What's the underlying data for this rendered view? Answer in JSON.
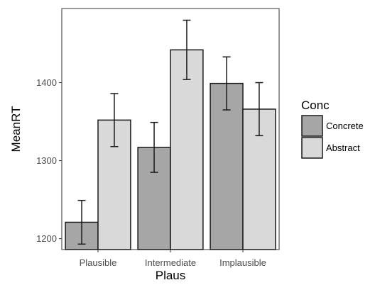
{
  "chart_data": {
    "type": "bar",
    "xlabel": "Plaus",
    "ylabel": "MeanRT",
    "categories": [
      "Plausible",
      "Intermediate",
      "Implausible"
    ],
    "series": [
      {
        "name": "Concrete",
        "color": "#a6a6a6",
        "values": [
          1221,
          1317,
          1399
        ],
        "err_low": [
          1193,
          1285,
          1365
        ],
        "err_high": [
          1249,
          1349,
          1433
        ]
      },
      {
        "name": "Abstract",
        "color": "#d9d9d9",
        "values": [
          1352,
          1442,
          1366
        ],
        "err_low": [
          1318,
          1404,
          1332
        ],
        "err_high": [
          1386,
          1480,
          1400
        ]
      }
    ],
    "ylim": [
      1186,
      1495
    ],
    "yticks": [
      1200,
      1300,
      1400
    ],
    "legend": {
      "title": "Conc",
      "position": "right"
    },
    "grid": false
  }
}
